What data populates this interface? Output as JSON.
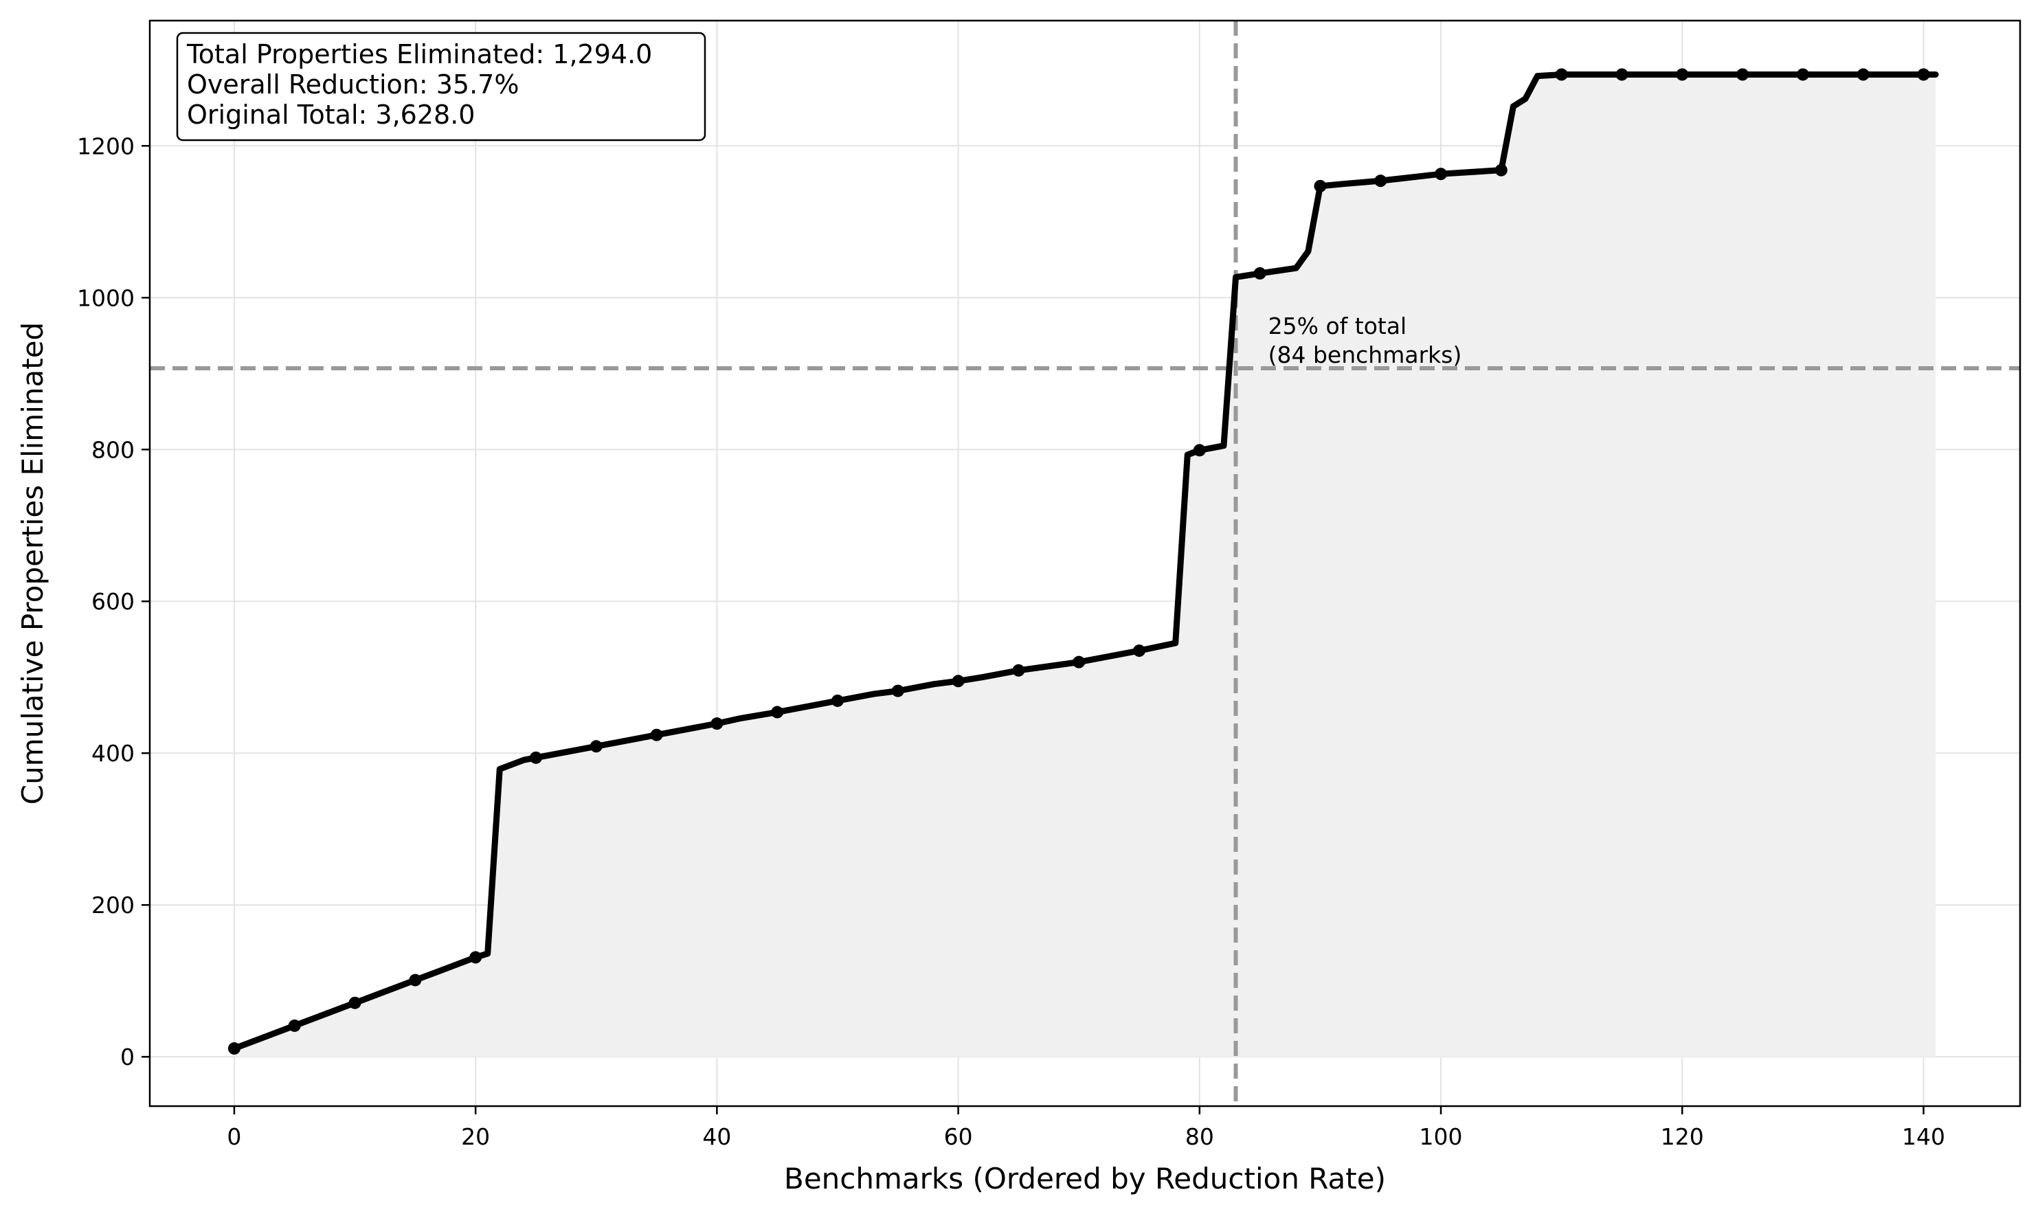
{
  "chart_data": {
    "type": "line",
    "xlabel": "Benchmarks (Ordered by Reduction Rate)",
    "ylabel": "Cumulative Properties Eliminated",
    "xlim": [
      -7,
      148
    ],
    "ylim": [
      -65,
      1365
    ],
    "xticks": [
      0,
      20,
      40,
      60,
      80,
      100,
      120,
      140
    ],
    "yticks": [
      0,
      200,
      400,
      600,
      800,
      1000,
      1200
    ],
    "grid": true,
    "fill_under": true,
    "colors": {
      "line": "#000000",
      "fill": "#f0f0f0",
      "reference": "#999999",
      "grid": "#e3e3e3"
    },
    "series": [
      {
        "x": [
          0,
          5,
          10,
          15,
          20,
          21,
          22,
          24,
          25,
          30,
          35,
          40,
          42,
          45,
          50,
          53,
          55,
          58,
          60,
          62,
          65,
          70,
          75,
          78,
          79,
          80,
          82,
          83,
          85,
          88,
          89,
          90,
          92,
          95,
          100,
          103,
          105,
          106,
          107,
          108,
          110,
          115,
          120,
          125,
          130,
          135,
          140,
          141
        ],
        "y": [
          11,
          41,
          71,
          101,
          131,
          136,
          379,
          391,
          394,
          409,
          424,
          439,
          446,
          454,
          469,
          478,
          482,
          491,
          495,
          500,
          509,
          520,
          535,
          545,
          793,
          799,
          805,
          1027,
          1032,
          1039,
          1061,
          1147,
          1150,
          1154,
          1163,
          1166,
          1168,
          1252,
          1262,
          1292,
          1294,
          1294,
          1294,
          1294,
          1294,
          1294,
          1294,
          1294
        ]
      }
    ],
    "marker_x": [
      0,
      5,
      10,
      15,
      20,
      25,
      30,
      35,
      40,
      45,
      50,
      55,
      60,
      65,
      70,
      75,
      80,
      85,
      90,
      95,
      100,
      105,
      110,
      115,
      120,
      125,
      130,
      135,
      140
    ],
    "reference_lines": {
      "vertical_x": 83,
      "horizontal_y": 907
    },
    "annotation": {
      "x": 85,
      "y": 907,
      "lines": [
        "25% of total",
        "(84 benchmarks)"
      ]
    },
    "stats_box": {
      "lines": [
        "Total Properties Eliminated: 1,294.0",
        "Overall Reduction: 35.7%",
        "Original Total: 3,628.0"
      ],
      "position": "top-left"
    }
  }
}
